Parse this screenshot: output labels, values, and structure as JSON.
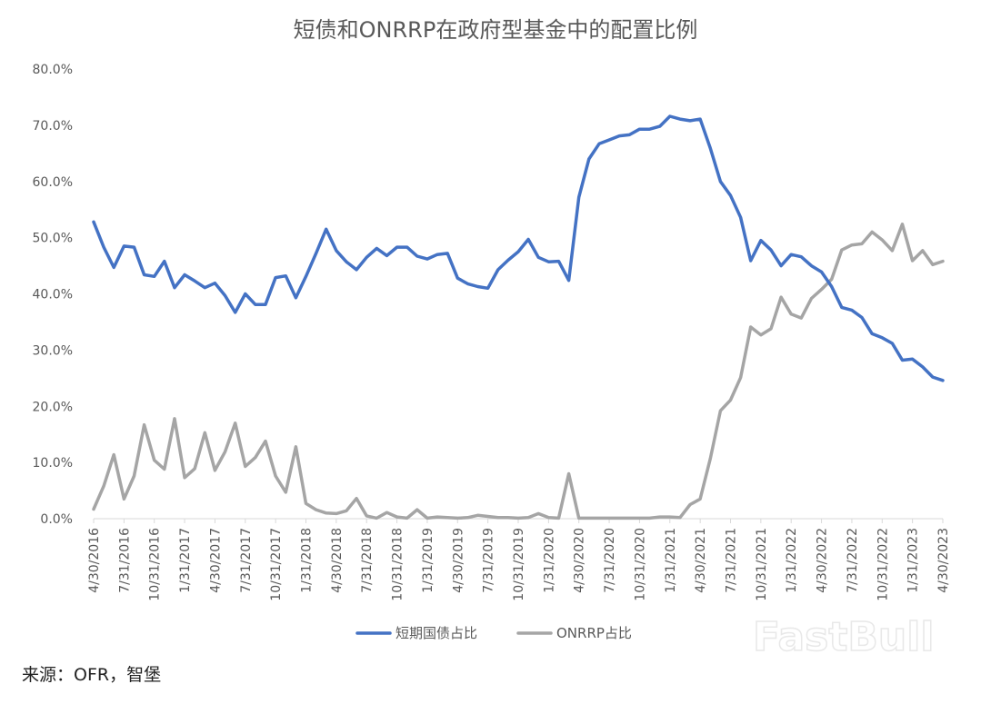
{
  "chart_data": {
    "type": "line",
    "title": "短债和ONRRP在政府型基金中的配置比例",
    "ylim": [
      0,
      0.8
    ],
    "y_ticks": [
      "80.0%",
      "70.0%",
      "60.0%",
      "50.0%",
      "40.0%",
      "30.0%",
      "20.0%",
      "10.0%",
      "0.0%"
    ],
    "x_start": "2016-04-30",
    "x_end": "2023-04-30",
    "x_tick_labels": [
      "4/30/2016",
      "7/31/2016",
      "10/31/2016",
      "1/31/2017",
      "4/30/2017",
      "7/31/2017",
      "10/31/2017",
      "1/31/2018",
      "4/30/2018",
      "7/31/2018",
      "10/31/2018",
      "1/31/2019",
      "4/30/2019",
      "7/31/2019",
      "10/31/2019",
      "1/31/2020",
      "4/30/2020",
      "7/31/2020",
      "10/31/2020",
      "1/31/2021",
      "4/30/2021",
      "7/31/2021",
      "10/31/2021",
      "1/31/2022",
      "4/30/2022",
      "7/31/2022",
      "10/31/2022",
      "1/31/2023",
      "4/30/2023"
    ],
    "grid": false,
    "legend_position": "bottom",
    "series": [
      {
        "name": "短期国债占比",
        "color": "#4472C4",
        "values": [
          0.528,
          0.483,
          0.447,
          0.485,
          0.483,
          0.434,
          0.431,
          0.458,
          0.411,
          0.434,
          0.423,
          0.411,
          0.419,
          0.397,
          0.367,
          0.4,
          0.381,
          0.381,
          0.429,
          0.432,
          0.393,
          0.431,
          0.472,
          0.515,
          0.477,
          0.457,
          0.443,
          0.465,
          0.481,
          0.468,
          0.483,
          0.483,
          0.467,
          0.462,
          0.47,
          0.472,
          0.428,
          0.418,
          0.413,
          0.41,
          0.443,
          0.46,
          0.475,
          0.497,
          0.465,
          0.457,
          0.458,
          0.424,
          0.572,
          0.64,
          0.667,
          0.674,
          0.681,
          0.683,
          0.693,
          0.693,
          0.698,
          0.716,
          0.711,
          0.708,
          0.711,
          0.659,
          0.6,
          0.575,
          0.536,
          0.459,
          0.495,
          0.478,
          0.45,
          0.47,
          0.466,
          0.45,
          0.439,
          0.413,
          0.376,
          0.371,
          0.358,
          0.329,
          0.322,
          0.312,
          0.282,
          0.284,
          0.27,
          0.252,
          0.246
        ]
      },
      {
        "name": "ONRRP占比",
        "color": "#A5A5A5",
        "values": [
          0.017,
          0.058,
          0.114,
          0.035,
          0.076,
          0.167,
          0.104,
          0.088,
          0.178,
          0.073,
          0.089,
          0.153,
          0.086,
          0.119,
          0.17,
          0.093,
          0.109,
          0.138,
          0.076,
          0.047,
          0.128,
          0.027,
          0.016,
          0.01,
          0.009,
          0.014,
          0.036,
          0.005,
          0.001,
          0.011,
          0.003,
          0.001,
          0.016,
          0.001,
          0.003,
          0.002,
          0.001,
          0.002,
          0.006,
          0.004,
          0.002,
          0.002,
          0.001,
          0.002,
          0.009,
          0.002,
          0.001,
          0.08,
          0.001,
          0.001,
          0.001,
          0.001,
          0.001,
          0.001,
          0.001,
          0.001,
          0.003,
          0.003,
          0.002,
          0.025,
          0.035,
          0.107,
          0.192,
          0.211,
          0.251,
          0.341,
          0.327,
          0.338,
          0.394,
          0.364,
          0.357,
          0.392,
          0.408,
          0.426,
          0.478,
          0.487,
          0.489,
          0.51,
          0.496,
          0.477,
          0.524,
          0.459,
          0.477,
          0.452,
          0.458
        ]
      }
    ]
  },
  "source_text": "来源：OFR，智堡",
  "watermark_text": "FastBull"
}
